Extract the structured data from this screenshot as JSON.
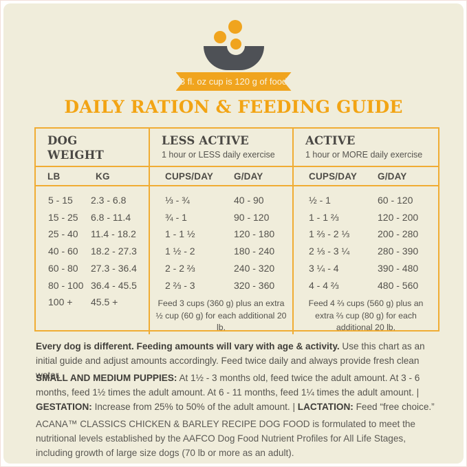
{
  "badge": {
    "label": "8 fl. oz cup is 120 g of food"
  },
  "title": "DAILY RATION & FEEDING GUIDE",
  "colors": {
    "accent_orange": "#f0a41e",
    "background_cream": "#f0eddb",
    "bowl_gray": "#4e5156",
    "text_gray": "#53514c"
  },
  "table": {
    "columns": [
      {
        "title": "DOG WEIGHT",
        "subtitle": ""
      },
      {
        "title": "LESS ACTIVE",
        "subtitle": "1 hour or LESS daily exercise"
      },
      {
        "title": "ACTIVE",
        "subtitle": "1 hour or MORE daily exercise"
      }
    ],
    "subheaders": {
      "lb": "LB",
      "kg": "KG",
      "cups": "CUPS/DAY",
      "g": "G/DAY"
    },
    "weight_rows": [
      {
        "lb": "5 - 15",
        "kg": "2.3 - 6.8"
      },
      {
        "lb": "15 - 25",
        "kg": "6.8 - 11.4"
      },
      {
        "lb": "25 - 40",
        "kg": "11.4 - 18.2"
      },
      {
        "lb": "40 - 60",
        "kg": "18.2 - 27.3"
      },
      {
        "lb": "60 - 80",
        "kg": "27.3 - 36.4"
      },
      {
        "lb": "80 - 100",
        "kg": "36.4 - 45.5"
      },
      {
        "lb": "100 +",
        "kg": "45.5 +"
      }
    ],
    "less_active_rows": [
      {
        "cups": "⅓ - ¾",
        "g": "40 - 90"
      },
      {
        "cups": "¾ - 1",
        "g": "90 - 120"
      },
      {
        "cups": "1 - 1 ½",
        "g": "120 - 180"
      },
      {
        "cups": "1 ½ - 2",
        "g": "180 - 240"
      },
      {
        "cups": "2 - 2 ⅔",
        "g": "240 - 320"
      },
      {
        "cups": "2 ⅔ - 3",
        "g": "320 - 360"
      }
    ],
    "active_rows": [
      {
        "cups": "½ - 1",
        "g": "60 - 120"
      },
      {
        "cups": "1 - 1 ⅔",
        "g": "120 - 200"
      },
      {
        "cups": "1 ⅔ - 2 ⅓",
        "g": "200 - 280"
      },
      {
        "cups": "2 ⅓ - 3 ¼",
        "g": "280 - 390"
      },
      {
        "cups": "3 ¼ - 4",
        "g": "390 - 480"
      },
      {
        "cups": "4 - 4 ⅔",
        "g": "480 - 560"
      }
    ],
    "less_active_note": "Feed 3 cups (360 g) plus an extra ½ cup (60 g) for each additional 20 lb.",
    "active_note": "Feed 4 ⅔ cups (560 g) plus an extra ⅔ cup (80 g) for each additional 20 lb."
  },
  "notes": {
    "p1_bold": "Every dog is different. Feeding amounts will vary with age & activity.",
    "p1_text": " Use this chart as an initial guide and adjust amounts accordingly. Feed twice daily and always provide fresh clean water.",
    "p2_bold1": "SMALL AND MEDIUM PUPPIES:",
    "p2_text1": " At 1½ - 3 months old, feed twice the adult amount. At 3 - 6 months, feed 1½ times the adult amount. At 6 - 11 months, feed 1¼ times the adult amount.  |  ",
    "p2_bold2": "GESTATION:",
    "p2_text2": " Increase from 25% to 50% of the adult amount.  |  ",
    "p2_bold3": "LACTATION:",
    "p2_text3": " Feed “free choice.”",
    "p3": "ACANA™ CLASSICS CHICKEN & BARLEY RECIPE DOG FOOD is formulated to meet the nutritional levels established by the AAFCO Dog Food Nutrient Profiles for All Life Stages, including growth of large size dogs (70 lb or more as an adult)."
  }
}
